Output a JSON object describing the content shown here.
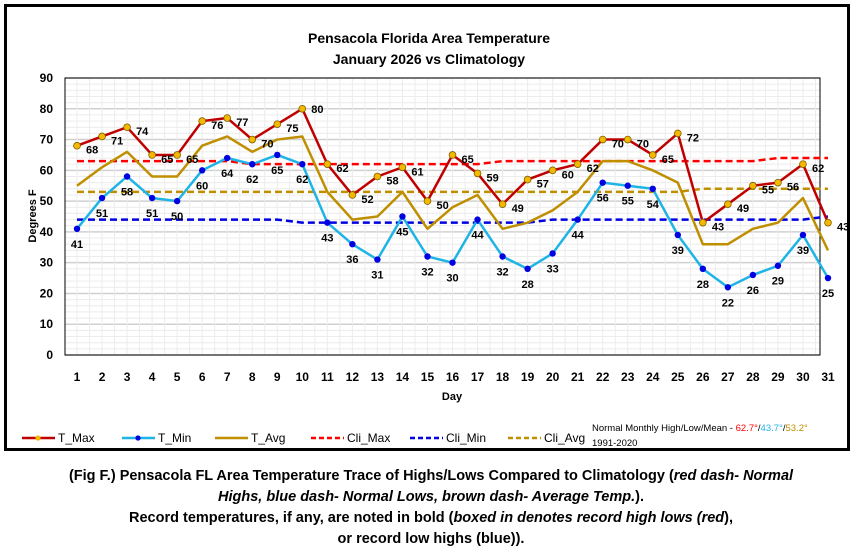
{
  "chart_data": {
    "type": "line",
    "title": "Pensacola Florida Area Temperature",
    "subtitle": "January 2026 vs Climatology",
    "xlabel": "Day",
    "ylabel": "Degrees F",
    "ylim": [
      0,
      90
    ],
    "yticks": [
      0,
      10,
      20,
      30,
      40,
      50,
      60,
      70,
      80,
      90
    ],
    "grid": true,
    "legend_placement": "bottom",
    "x": [
      1,
      2,
      3,
      4,
      5,
      6,
      7,
      8,
      9,
      10,
      11,
      12,
      13,
      14,
      15,
      16,
      17,
      18,
      19,
      20,
      21,
      22,
      23,
      24,
      25,
      26,
      27,
      28,
      29,
      30,
      31
    ],
    "series": [
      {
        "name": "T_Max",
        "color": "#c00000",
        "marker_color": "#f5b800",
        "style": "solid",
        "labeled": true,
        "values": [
          68,
          71,
          74,
          65,
          65,
          76,
          77,
          70,
          75,
          80,
          62,
          52,
          58,
          61,
          50,
          65,
          59,
          49,
          57,
          60,
          62,
          70,
          70,
          65,
          72,
          43,
          49,
          55,
          56,
          62,
          43
        ]
      },
      {
        "name": "T_Min",
        "color": "#1fb4e6",
        "marker_color": "#0000e0",
        "style": "solid",
        "labeled": true,
        "values": [
          41,
          51,
          58,
          51,
          50,
          60,
          64,
          62,
          65,
          62,
          43,
          36,
          31,
          45,
          32,
          30,
          44,
          32,
          28,
          33,
          44,
          56,
          55,
          54,
          39,
          28,
          22,
          26,
          29,
          39,
          25
        ]
      },
      {
        "name": "T_Avg",
        "color": "#bf8f00",
        "style": "solid",
        "labeled": false,
        "values": [
          55,
          61,
          66,
          58,
          58,
          68,
          71,
          66,
          70,
          71,
          53,
          44,
          45,
          53,
          41,
          48,
          52,
          41,
          43,
          47,
          53,
          63,
          63,
          60,
          56,
          36,
          36,
          41,
          43,
          51,
          34
        ]
      },
      {
        "name": "Cli_Max",
        "color": "#ff0000",
        "style": "dashed",
        "labeled": false,
        "values": [
          63,
          63,
          63,
          63,
          63,
          63,
          63,
          62,
          62,
          62,
          62,
          62,
          62,
          62,
          62,
          62,
          62,
          63,
          63,
          63,
          63,
          63,
          63,
          63,
          63,
          63,
          63,
          63,
          64,
          64,
          64
        ]
      },
      {
        "name": "Cli_Min",
        "color": "#0000e0",
        "style": "dashed",
        "labeled": false,
        "values": [
          44,
          44,
          44,
          44,
          44,
          44,
          44,
          44,
          44,
          43,
          43,
          43,
          43,
          43,
          43,
          43,
          43,
          43,
          43,
          44,
          44,
          44,
          44,
          44,
          44,
          44,
          44,
          44,
          44,
          44,
          45
        ]
      },
      {
        "name": "Cli_Avg",
        "color": "#bf8f00",
        "style": "dashed",
        "labeled": false,
        "values": [
          53,
          53,
          53,
          53,
          53,
          53,
          53,
          53,
          53,
          53,
          53,
          53,
          53,
          53,
          53,
          53,
          53,
          53,
          53,
          53,
          53,
          53,
          53,
          53,
          53,
          54,
          54,
          54,
          54,
          54,
          54
        ]
      }
    ],
    "annotations": [
      {
        "text": "80",
        "day": 10,
        "series": "T_Max",
        "color": "#ff0000",
        "note": "record"
      }
    ],
    "normals_note": {
      "label": "Normal Monthly High/Low/Mean - ",
      "high": "62.7°",
      "high_color": "#ff0000",
      "low": "43.7°",
      "low_color": "#1fb4e6",
      "mean": "53.2°",
      "mean_color": "#bf8f00",
      "sep": "/",
      "period": "1991-2020"
    }
  },
  "caption": {
    "line1_a": "(Fig F.) Pensacola FL Area Temperature Trace of Highs/Lows Compared to Climatology (",
    "line1_i": "red dash- Normal",
    "line2_i": "Highs, blue dash- Normal Lows, brown dash- Average Temp.",
    "line2_b": ").",
    "line3_a": "Record temperatures, if any, are noted in bold (",
    "line3_i": "boxed in denotes record high lows (red",
    "line3_b": "),",
    "line4": "or record low highs (blue))."
  }
}
